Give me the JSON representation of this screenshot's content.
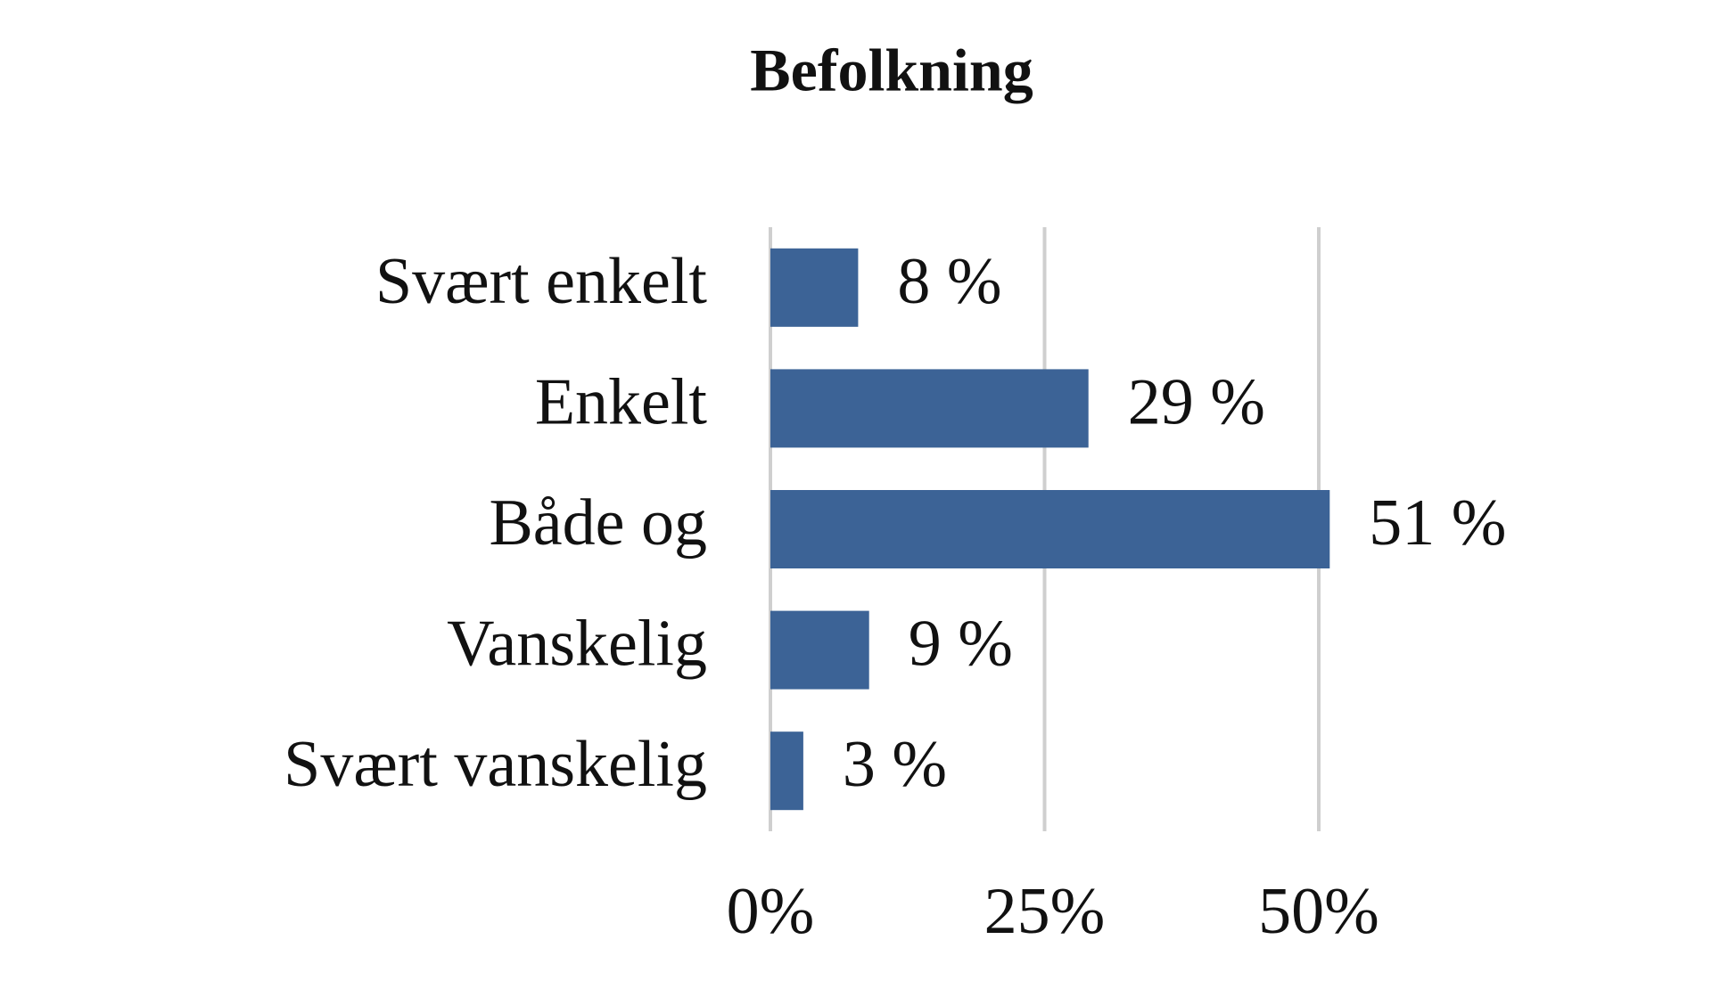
{
  "chart_data": {
    "type": "bar",
    "orientation": "horizontal",
    "title": "Befolkning",
    "categories": [
      "Svært enkelt",
      "Enkelt",
      "Både og",
      "Vanskelig",
      "Svært vanskelig"
    ],
    "values": [
      8,
      29,
      51,
      9,
      3
    ],
    "value_labels": [
      "8 %",
      "29 %",
      "51 %",
      "9 %",
      "3 %"
    ],
    "color": "#3c6396",
    "xlim": [
      0,
      50
    ],
    "xticks": [
      {
        "value": 0,
        "label": "0%"
      },
      {
        "value": 25,
        "label": "25%"
      },
      {
        "value": 50,
        "label": "50%"
      }
    ],
    "grid": true
  }
}
